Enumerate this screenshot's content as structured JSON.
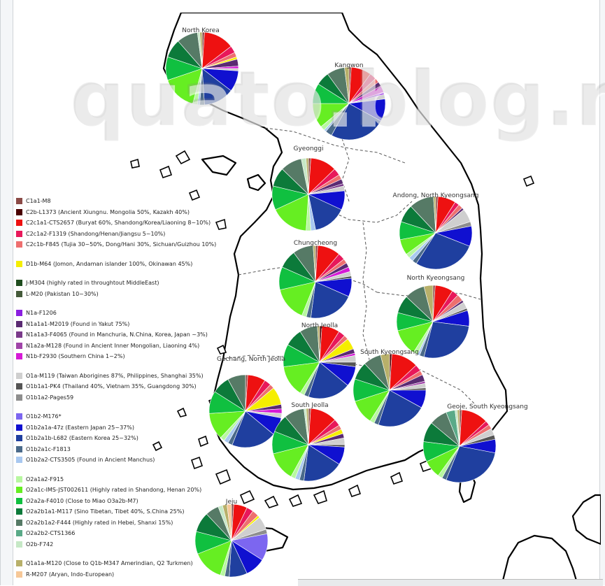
{
  "watermark": "quato.blog.me",
  "colors": {
    "C1a1-M8": "#8b4a46",
    "C2b-L1373": "#4a0000",
    "C2c1a1-CTS2657": "#ee1111",
    "C2c1a2-F1319": "#e8185a",
    "C2c1b-F845": "#ee6f6f",
    "D1b-M64": "#f5ee00",
    "J-M304": "#1f4d1f",
    "L-M20": "#445a3a",
    "N1a-F1206": "#8a1ee0",
    "N1a1a1-M2019": "#5a2a72",
    "N1a1a3-F4065": "#7a3a8a",
    "N1a2a-M128": "#a044a8",
    "N1b-F2930": "#d61ad6",
    "O1a-M119": "#cfcfcf",
    "O1b1a1-PK4": "#555555",
    "O1b1a2-Pages59": "#8e8e8e",
    "O1b2-M176": "#7c66f0",
    "O1b2a1a-47z": "#1010d0",
    "O1b2a1b-L682": "#1f3f9f",
    "O1b2a1c-F1813": "#4a6a8a",
    "O1b2a2-CTS3505": "#a8c8f0",
    "O2a1a2-F915": "#b8f7a0",
    "O2a1c-IMS-JST002611": "#66ee22",
    "O2a2a-F4010": "#10c040",
    "O2a2b1a1-M117": "#0c7a3a",
    "O2a2b1a2-F444": "#567a66",
    "O2a2b2-CTS1366": "#5aaa88",
    "O2b-F742": "#c6e8c6",
    "Q1a1a-M120": "#b8b06a",
    "R-M207": "#f6c898"
  },
  "legend": [
    {
      "key": "C1a1-M8",
      "label": "C1a1-M8"
    },
    {
      "key": "C2b-L1373",
      "label": "C2b-L1373 (Ancient Xiungnu. Mongolia 50%, Kazakh 40%)"
    },
    {
      "key": "C2c1a1-CTS2657",
      "label": "C2c1a1-CTS2657 (Buryat 60%, Shandong/Korea/Liaoning 8~10%)"
    },
    {
      "key": "C2c1a2-F1319",
      "label": "C2c1a2-F1319 (Shandong/Henan/Jiangsu 5~10%)"
    },
    {
      "key": "C2c1b-F845",
      "label": "C2c1b-F845 (Tujia 30~50%, Dong/Hani 30%, Sichuan/Guizhou 10%)"
    },
    {
      "key": "D1b-M64",
      "label": "D1b-M64 (Jomon, Andaman islander 100%, Okinawan 45%)",
      "gap": true
    },
    {
      "key": "J-M304",
      "label": "J-M304 (highly rated in throughtout MiddleEast)",
      "gap": true
    },
    {
      "key": "L-M20",
      "label": "L-M20 (Pakistan 10~30%)"
    },
    {
      "key": "N1a-F1206",
      "label": "N1a-F1206",
      "gap": true
    },
    {
      "key": "N1a1a1-M2019",
      "label": "N1a1a1-M2019 (Found in Yakut 75%)"
    },
    {
      "key": "N1a1a3-F4065",
      "label": "N1a1a3-F4065 (Found in Manchuria, N.China, Korea, Japan ~3%)"
    },
    {
      "key": "N1a2a-M128",
      "label": "N1a2a-M128 (Found in Ancient Inner Mongolian, Liaoning 4%)"
    },
    {
      "key": "N1b-F2930",
      "label": "N1b-F2930 (Southern China 1~2%)"
    },
    {
      "key": "O1a-M119",
      "label": "O1a-M119 (Taiwan Aborigines 87%, Philippines, Shanghai 35%)",
      "gap": true
    },
    {
      "key": "O1b1a1-PK4",
      "label": "O1b1a1-PK4 (Thailand 40%, Vietnam 35%, Guangdong 30%)"
    },
    {
      "key": "O1b1a2-Pages59",
      "label": "O1b1a2-Pages59"
    },
    {
      "key": "O1b2-M176",
      "label": "O1b2-M176*",
      "gap": true
    },
    {
      "key": "O1b2a1a-47z",
      "label": "O1b2a1a-47z (Eastern Japan 25~37%)"
    },
    {
      "key": "O1b2a1b-L682",
      "label": "O1b2a1b-L682 (Eastern Korea 25~32%)"
    },
    {
      "key": "O1b2a1c-F1813",
      "label": "O1b2a1c-F1813"
    },
    {
      "key": "O1b2a2-CTS3505",
      "label": "O1b2a2-CTS3505 (Found in Ancient Manchus)"
    },
    {
      "key": "O2a1a2-F915",
      "label": "O2a1a2-F915",
      "gap": true
    },
    {
      "key": "O2a1c-IMS-JST002611",
      "label": "O2a1c-IMS-JST002611 (Highly rated in Shandong, Henan 20%)"
    },
    {
      "key": "O2a2a-F4010",
      "label": "O2a2a-F4010 (Close to Miao O3a2b-M7)"
    },
    {
      "key": "O2a2b1a1-M117",
      "label": "O2a2b1a1-M117 (Sino Tibetan, Tibet 40%, S.China 25%)"
    },
    {
      "key": "O2a2b1a2-F444",
      "label": "O2a2b1a2-F444 (Highly rated in Hebei, Shanxi 15%)"
    },
    {
      "key": "O2a2b2-CTS1366",
      "label": "O2a2b2-CTS1366"
    },
    {
      "key": "O2b-F742",
      "label": "O2b-F742"
    },
    {
      "key": "Q1a1a-M120",
      "label": "Q1a1a-M120 (Close to Q1b-M347 Amerindian, Q2 Turkmen)",
      "gap": true
    },
    {
      "key": "R-M207",
      "label": "R-M207 (Aryan, Indo-European)"
    }
  ],
  "regions": [
    {
      "name": "North Korea",
      "slices": [
        [
          "C1a1-M8",
          1
        ],
        [
          "C2c1a1-CTS2657",
          13
        ],
        [
          "C2c1a2-F1319",
          3
        ],
        [
          "C2c1b-F845",
          2
        ],
        [
          "D1b-M64",
          1
        ],
        [
          "N1a1a1-M2019",
          3
        ],
        [
          "N1b-F2930",
          1
        ],
        [
          "O1a-M119",
          1
        ],
        [
          "O1b2a1a-47z",
          9
        ],
        [
          "O1b2a1b-L682",
          13
        ],
        [
          "O1b2a1c-F1813",
          2
        ],
        [
          "O1b2a2-CTS3505",
          1
        ],
        [
          "O2a1a2-F915",
          2
        ],
        [
          "O2a1c-IMS-JST002611",
          15
        ],
        [
          "O2a2a-F4010",
          10
        ],
        [
          "O2a2b1a1-M117",
          8
        ],
        [
          "O2a2b1a2-F444",
          9
        ],
        [
          "O2b-F742",
          1
        ],
        [
          "Q1a1a-M120",
          1
        ]
      ]
    },
    {
      "name": "Kangwon",
      "slices": [
        [
          "C1a1-M8",
          1
        ],
        [
          "C2c1a1-CTS2657",
          9
        ],
        [
          "C2c1a2-F1319",
          3
        ],
        [
          "C2c1b-F845",
          2
        ],
        [
          "N1a1a1-M2019",
          2
        ],
        [
          "N1b-F2930",
          3
        ],
        [
          "N1a-F1206",
          1
        ],
        [
          "O1a-M119",
          2
        ],
        [
          "O1b2a1a-47z",
          10
        ],
        [
          "O1b2a1b-L682",
          25
        ],
        [
          "O1b2a1c-F1813",
          3
        ],
        [
          "O1b2a2-CTS3505",
          1
        ],
        [
          "O2a1a2-F915",
          2
        ],
        [
          "O2a1c-IMS-JST002611",
          11
        ],
        [
          "O2a2a-F4010",
          9
        ],
        [
          "O2a2b1a1-M117",
          6
        ],
        [
          "O2a2b1a2-F444",
          8
        ],
        [
          "Q1a1a-M120",
          2
        ]
      ]
    },
    {
      "name": "Gyeonggi",
      "slices": [
        [
          "C1a1-M8",
          1
        ],
        [
          "C2c1a1-CTS2657",
          11
        ],
        [
          "C2c1a2-F1319",
          3
        ],
        [
          "C2c1b-F845",
          2
        ],
        [
          "N1a1a1-M2019",
          2
        ],
        [
          "N1a1a3-F4065",
          1
        ],
        [
          "O1a-M119",
          2
        ],
        [
          "O1b2a1a-47z",
          8
        ],
        [
          "O1b2a1b-L682",
          14
        ],
        [
          "O1b2a2-CTS3505",
          2
        ],
        [
          "O2a1a2-F915",
          2
        ],
        [
          "O2a1c-IMS-JST002611",
          16
        ],
        [
          "O2a2a-F4010",
          10
        ],
        [
          "O2a2b1a1-M117",
          8
        ],
        [
          "O2a2b1a2-F444",
          9
        ],
        [
          "O2b-F742",
          2
        ],
        [
          "Q1a1a-M120",
          1
        ]
      ]
    },
    {
      "name": "Andong, North Kyeongsang",
      "slices": [
        [
          "C1a1-M8",
          1
        ],
        [
          "C2c1a1-CTS2657",
          8
        ],
        [
          "C2c1a2-F1319",
          2
        ],
        [
          "C2c1b-F845",
          2
        ],
        [
          "N1a1a1-M2019",
          1
        ],
        [
          "O1a-M119",
          6
        ],
        [
          "O1b1a2-Pages59",
          2
        ],
        [
          "O1b2a1a-47z",
          9
        ],
        [
          "O1b2a1b-L682",
          28
        ],
        [
          "O1b2a1c-F1813",
          2
        ],
        [
          "O1b2a2-CTS3505",
          2
        ],
        [
          "O2a1a2-F915",
          2
        ],
        [
          "O2a1c-IMS-JST002611",
          7
        ],
        [
          "O2a2a-F4010",
          8
        ],
        [
          "O2a2b1a1-M117",
          8
        ],
        [
          "O2a2b1a2-F444",
          11
        ],
        [
          "Q1a1a-M120",
          1
        ]
      ]
    },
    {
      "name": "Chungcheong",
      "slices": [
        [
          "C1a1-M8",
          1
        ],
        [
          "C2c1a1-CTS2657",
          10
        ],
        [
          "C2c1a2-F1319",
          3
        ],
        [
          "C2c1b-F845",
          2
        ],
        [
          "N1a1a1-M2019",
          2
        ],
        [
          "N1b-F2930",
          2
        ],
        [
          "O1a-M119",
          2
        ],
        [
          "O1b1a1-PK4",
          1
        ],
        [
          "O1b2a1a-47z",
          8
        ],
        [
          "O1b2a1b-L682",
          20
        ],
        [
          "O1b2a1c-F1813",
          2
        ],
        [
          "O2a1a2-F915",
          2
        ],
        [
          "O2a1c-IMS-JST002611",
          15
        ],
        [
          "O2a2a-F4010",
          10
        ],
        [
          "O2a2b1a1-M117",
          8
        ],
        [
          "O2a2b1a2-F444",
          9
        ],
        [
          "Q1a1a-M120",
          1
        ]
      ]
    },
    {
      "name": "North Kyeongsang",
      "slices": [
        [
          "C1a1-M8",
          1
        ],
        [
          "C2c1a1-CTS2657",
          8
        ],
        [
          "C2c1a2-F1319",
          3
        ],
        [
          "C2c1b-F845",
          3
        ],
        [
          "N1a1a1-M2019",
          1
        ],
        [
          "O1a-M119",
          3
        ],
        [
          "O1b1a1-PK4",
          1
        ],
        [
          "O1b2a1a-47z",
          7
        ],
        [
          "O1b2a1b-L682",
          27
        ],
        [
          "O1b2a1c-F1813",
          2
        ],
        [
          "O1b2a2-CTS3505",
          1
        ],
        [
          "O2a1a2-F915",
          2
        ],
        [
          "O2a1c-IMS-JST002611",
          12
        ],
        [
          "O2a2a-F4010",
          8
        ],
        [
          "O2a2b1a1-M117",
          8
        ],
        [
          "O2a2b1a2-F444",
          9
        ],
        [
          "Q1a1a-M120",
          4
        ]
      ]
    },
    {
      "name": "North Jeolla",
      "slices": [
        [
          "C2b-L1373",
          1
        ],
        [
          "C2c1a1-CTS2657",
          8
        ],
        [
          "C2c1a2-F1319",
          3
        ],
        [
          "C2c1b-F845",
          2
        ],
        [
          "D1b-M64",
          5
        ],
        [
          "N1a1a1-M2019",
          2
        ],
        [
          "N1b-F2930",
          1
        ],
        [
          "O1a-M119",
          3
        ],
        [
          "O1b1a1-PK4",
          2
        ],
        [
          "O1b2a1a-47z",
          9
        ],
        [
          "O1b2a1b-L682",
          19
        ],
        [
          "O1b2a1c-F1813",
          2
        ],
        [
          "O2a1a2-F915",
          2
        ],
        [
          "O2a1c-IMS-JST002611",
          14
        ],
        [
          "O2a2a-F4010",
          10
        ],
        [
          "O2a2b1a1-M117",
          8
        ],
        [
          "O2a2b1a2-F444",
          8
        ],
        [
          "Q1a1a-M120",
          1
        ]
      ]
    },
    {
      "name": "South Kyeongsang",
      "slices": [
        [
          "C2b-L1373",
          1
        ],
        [
          "C2c1a1-CTS2657",
          12
        ],
        [
          "C2c1a2-F1319",
          3
        ],
        [
          "C2c1b-F845",
          2
        ],
        [
          "N1a1a1-M2019",
          3
        ],
        [
          "N1a2a-M128",
          1
        ],
        [
          "O1a-M119",
          2
        ],
        [
          "O1b1a1-PK4",
          1
        ],
        [
          "O1b2a1a-47z",
          8
        ],
        [
          "O1b2a1b-L682",
          22
        ],
        [
          "O1b2a1c-F1813",
          2
        ],
        [
          "O2a1a2-F915",
          2
        ],
        [
          "O2a1c-IMS-JST002611",
          11
        ],
        [
          "O2a2a-F4010",
          10
        ],
        [
          "O2a2b1a1-M117",
          8
        ],
        [
          "O2a2b1a2-F444",
          8
        ],
        [
          "Q1a1a-M120",
          4
        ]
      ]
    },
    {
      "name": "Gochang, North Jeolla",
      "slices": [
        [
          "C1a1-M8",
          1
        ],
        [
          "C2c1a1-CTS2657",
          8
        ],
        [
          "C2c1a2-F1319",
          3
        ],
        [
          "C2c1b-F845",
          2
        ],
        [
          "D1b-M64",
          8
        ],
        [
          "N1a1a1-M2019",
          2
        ],
        [
          "N1b-F2930",
          2
        ],
        [
          "O1a-M119",
          2
        ],
        [
          "O1b2a1a-47z",
          8
        ],
        [
          "O1b2a1b-L682",
          20
        ],
        [
          "O1b2a1c-F1813",
          2
        ],
        [
          "O1b2a2-CTS3505",
          2
        ],
        [
          "O2a1a2-F915",
          2
        ],
        [
          "O2a1c-IMS-JST002611",
          12
        ],
        [
          "O2a2a-F4010",
          10
        ],
        [
          "O2a2b1a1-M117",
          8
        ],
        [
          "O2a2b1a2-F444",
          8
        ]
      ]
    },
    {
      "name": "South Jeolla",
      "slices": [
        [
          "C1a1-M8",
          1
        ],
        [
          "C2c1a1-CTS2657",
          12
        ],
        [
          "C2c1a2-F1319",
          3
        ],
        [
          "C2c1b-F845",
          2
        ],
        [
          "D1b-M64",
          2
        ],
        [
          "N1a1a1-M2019",
          2
        ],
        [
          "O1a-M119",
          3
        ],
        [
          "O1b1a1-PK4",
          1
        ],
        [
          "O1b2a1a-47z",
          8
        ],
        [
          "O1b2a1b-L682",
          18
        ],
        [
          "O1b2a1c-F1813",
          2
        ],
        [
          "O1b2a2-CTS3505",
          2
        ],
        [
          "O2a1a2-F915",
          2
        ],
        [
          "O2a1c-IMS-JST002611",
          13
        ],
        [
          "O2a2a-F4010",
          10
        ],
        [
          "O2a2b1a1-M117",
          8
        ],
        [
          "O2a2b1a2-F444",
          9
        ],
        [
          "O2b-F742",
          1
        ],
        [
          "Q1a1a-M120",
          1
        ]
      ]
    },
    {
      "name": "Geoje, South Kyeongsang",
      "slices": [
        [
          "C1a1-M8",
          1
        ],
        [
          "C2c1a1-CTS2657",
          12
        ],
        [
          "C2c1a2-F1319",
          2
        ],
        [
          "C2c1b-F845",
          2
        ],
        [
          "O1a-M119",
          3
        ],
        [
          "O1b1a1-PK4",
          2
        ],
        [
          "O1b2a1a-47z",
          6
        ],
        [
          "O1b2a1b-L682",
          28
        ],
        [
          "O1b2a1c-F1813",
          2
        ],
        [
          "O2a1a2-F915",
          2
        ],
        [
          "O2a1c-IMS-JST002611",
          8
        ],
        [
          "O2a2a-F4010",
          9
        ],
        [
          "O2a2b1a1-M117",
          9
        ],
        [
          "O2a2b1a2-F444",
          8
        ],
        [
          "O2a2b2-CTS1366",
          4
        ],
        [
          "O2b-F742",
          1
        ],
        [
          "Q1a1a-M120",
          1
        ]
      ]
    },
    {
      "name": "Jeju",
      "slices": [
        [
          "C1a1-M8",
          1
        ],
        [
          "C2c1a1-CTS2657",
          6
        ],
        [
          "C2c1a2-F1319",
          3
        ],
        [
          "C2c1b-F845",
          3
        ],
        [
          "D1b-M64",
          1
        ],
        [
          "O1a-M119",
          6
        ],
        [
          "O1b1a2-Pages59",
          2
        ],
        [
          "O1b2-M176",
          12
        ],
        [
          "O1b2a1a-47z",
          9
        ],
        [
          "O1b2a1b-L682",
          8
        ],
        [
          "O1b2a1c-F1813",
          2
        ],
        [
          "O2a1a2-F915",
          2
        ],
        [
          "O2a1c-IMS-JST002611",
          14
        ],
        [
          "O2a2a-F4010",
          10
        ],
        [
          "O2a2b1a1-M117",
          9
        ],
        [
          "O2a2b1a2-F444",
          6
        ],
        [
          "O2b-F742",
          2
        ],
        [
          "Q1a1a-M120",
          2
        ],
        [
          "R-M207",
          2
        ]
      ]
    }
  ]
}
